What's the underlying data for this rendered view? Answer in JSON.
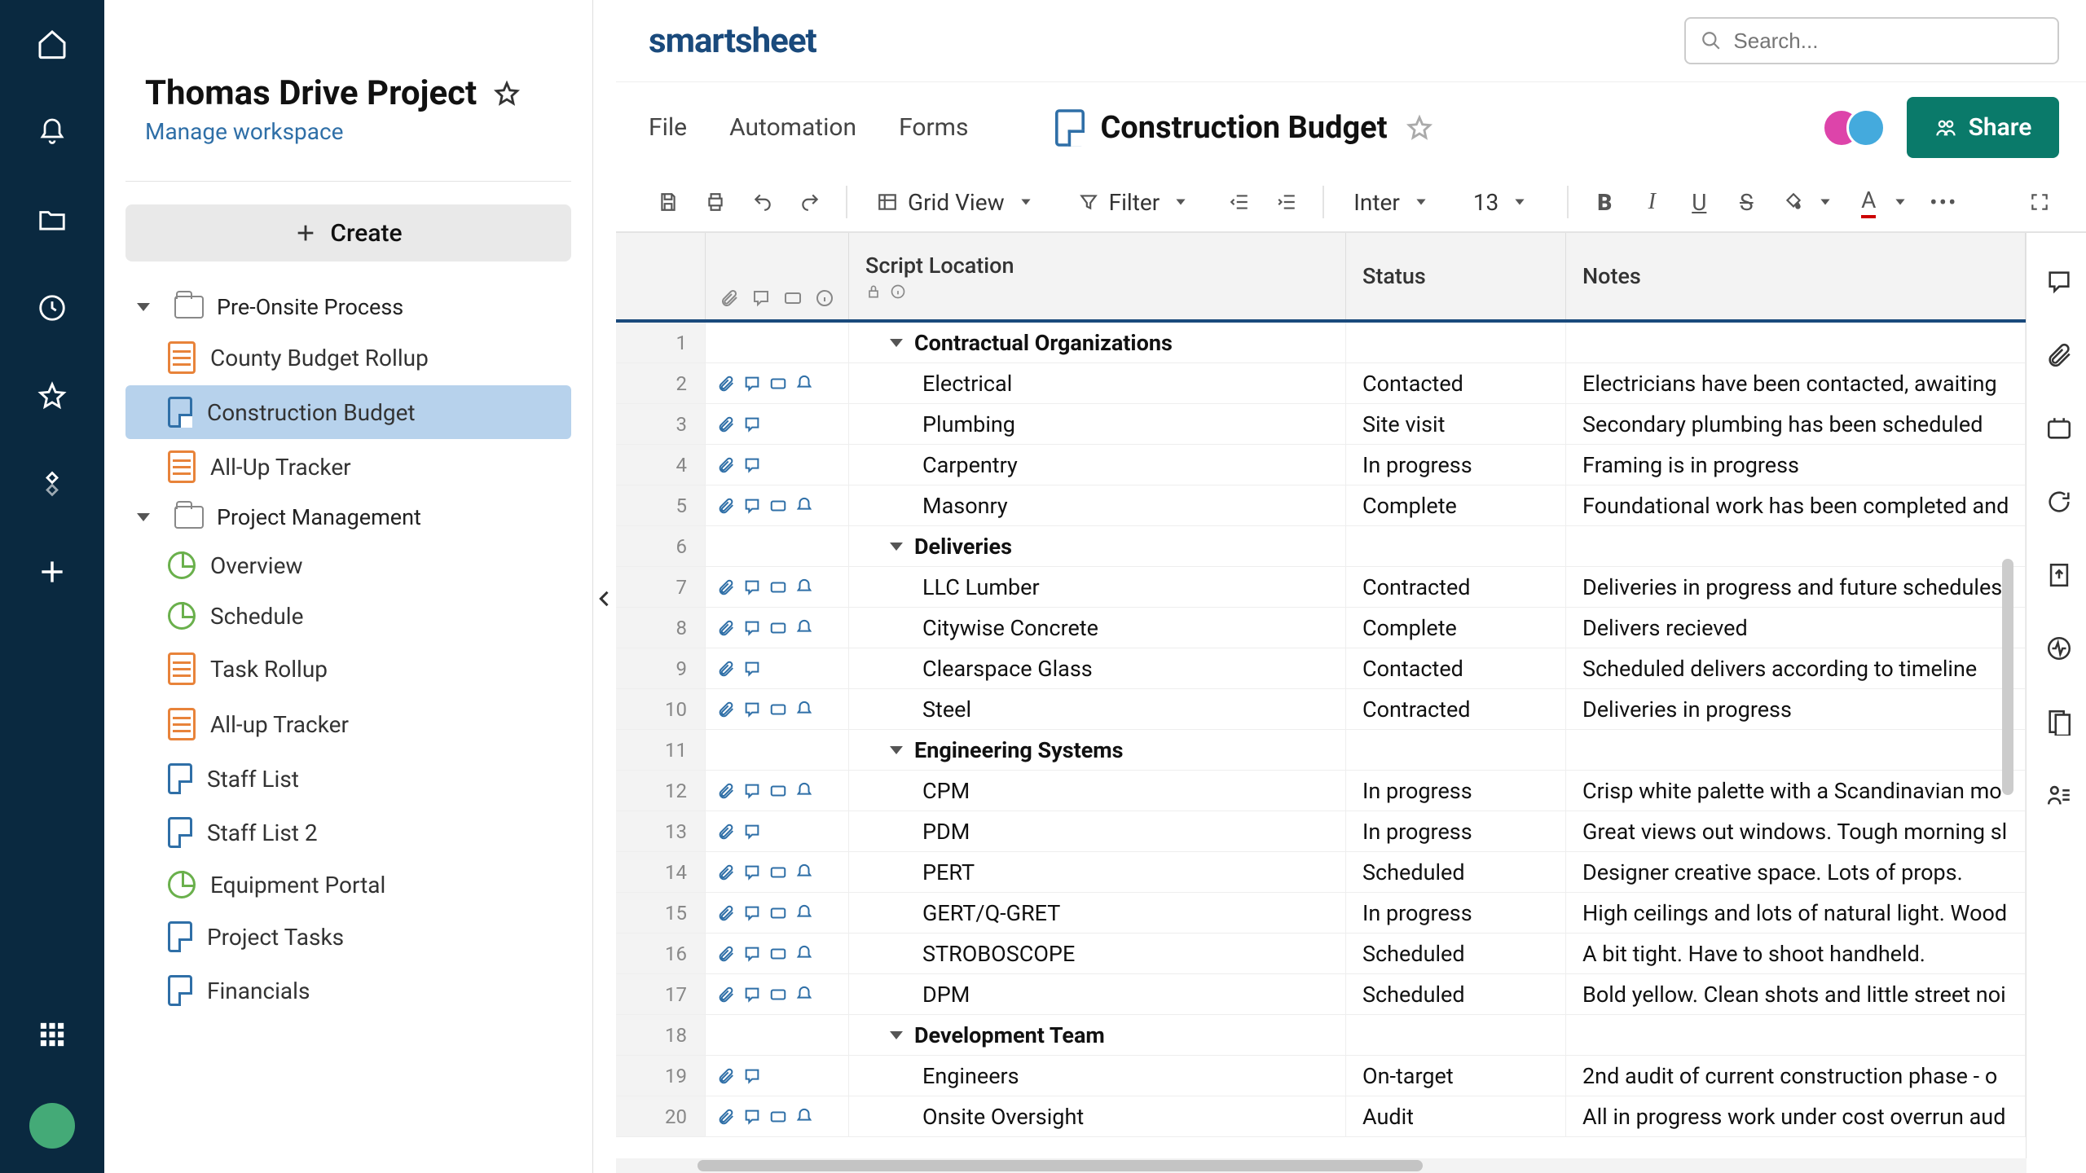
{
  "project": {
    "title": "Thomas Drive Project",
    "manage_link": "Manage workspace"
  },
  "create_button": "Create",
  "nav": {
    "group1": "Pre-Onsite Process",
    "group1_items": [
      {
        "label": "County Budget Rollup",
        "type": "sheet-orange"
      },
      {
        "label": "Construction Budget",
        "type": "sheet-blue",
        "selected": true
      },
      {
        "label": "All-Up Tracker",
        "type": "sheet-orange"
      }
    ],
    "group2": "Project Management",
    "group2_items": [
      {
        "label": "Overview",
        "type": "dash"
      },
      {
        "label": "Schedule",
        "type": "dash"
      },
      {
        "label": "Task Rollup",
        "type": "sheet-orange"
      },
      {
        "label": "All-up Tracker",
        "type": "sheet-orange"
      },
      {
        "label": "Staff List",
        "type": "sheet-blue"
      },
      {
        "label": "Staff List 2",
        "type": "sheet-blue"
      },
      {
        "label": "Equipment Portal",
        "type": "dash"
      },
      {
        "label": "Project Tasks",
        "type": "sheet-blue"
      },
      {
        "label": "Financials",
        "type": "sheet-blue"
      }
    ]
  },
  "brand": "smartsheet",
  "search_placeholder": "Search...",
  "menu": {
    "file": "File",
    "automation": "Automation",
    "forms": "Forms"
  },
  "sheet_title": "Construction Budget",
  "share_label": "Share",
  "toolbar": {
    "view": "Grid View",
    "filter": "Filter",
    "font": "Inter",
    "size": "13"
  },
  "columns": {
    "main": "Script Location",
    "status": "Status",
    "notes": "Notes"
  },
  "rows": [
    {
      "n": "1",
      "group": true,
      "main": "Contractual Organizations",
      "status": "",
      "notes": "",
      "icons": 0
    },
    {
      "n": "2",
      "main": "Electrical",
      "status": "Contacted",
      "notes": "Electricians have been contacted, awaiting",
      "icons": 4
    },
    {
      "n": "3",
      "main": "Plumbing",
      "status": "Site visit",
      "notes": "Secondary plumbing has been scheduled",
      "icons": 2
    },
    {
      "n": "4",
      "main": "Carpentry",
      "status": "In progress",
      "notes": "Framing is in progress",
      "icons": 2
    },
    {
      "n": "5",
      "main": "Masonry",
      "status": "Complete",
      "notes": "Foundational work has been completed and",
      "icons": 4
    },
    {
      "n": "6",
      "group": true,
      "main": "Deliveries",
      "status": "",
      "notes": "",
      "icons": 0
    },
    {
      "n": "7",
      "main": "LLC Lumber",
      "status": "Contracted",
      "notes": "Deliveries in progress and future schedules",
      "icons": 4
    },
    {
      "n": "8",
      "main": "Citywise Concrete",
      "status": "Complete",
      "notes": "Delivers recieved",
      "icons": 4
    },
    {
      "n": "9",
      "main": "Clearspace Glass",
      "status": "Contacted",
      "notes": "Scheduled delivers according to timeline",
      "icons": 2
    },
    {
      "n": "10",
      "main": "Steel",
      "status": "Contracted",
      "notes": "Deliveries in progress",
      "icons": 4
    },
    {
      "n": "11",
      "group": true,
      "main": "Engineering Systems",
      "status": "",
      "notes": "",
      "icons": 0
    },
    {
      "n": "12",
      "main": "CPM",
      "status": "In progress",
      "notes": "Crisp white palette with a Scandinavian mo",
      "icons": 4
    },
    {
      "n": "13",
      "main": "PDM",
      "status": "In progress",
      "notes": "Great views out windows. Tough morning sl",
      "icons": 2
    },
    {
      "n": "14",
      "main": "PERT",
      "status": "Scheduled",
      "notes": "Designer creative space. Lots of props.",
      "icons": 4
    },
    {
      "n": "15",
      "main": "GERT/Q-GRET",
      "status": "In progress",
      "notes": "High ceilings and lots of natural light. Wood",
      "icons": 4
    },
    {
      "n": "16",
      "main": "STROBOSCOPE",
      "status": "Scheduled",
      "notes": "A bit tight. Have to shoot handheld.",
      "icons": 4
    },
    {
      "n": "17",
      "main": "DPM",
      "status": "Scheduled",
      "notes": "Bold yellow. Clean shots and little street noi",
      "icons": 4
    },
    {
      "n": "18",
      "group": true,
      "main": "Development Team",
      "status": "",
      "notes": "",
      "icons": 0
    },
    {
      "n": "19",
      "main": "Engineers",
      "status": "On-target",
      "notes": "2nd audit of current construction phase - o",
      "icons": 2
    },
    {
      "n": "20",
      "main": "Onsite Oversight",
      "status": "Audit",
      "notes": "All in progress work under cost overrun aud",
      "icons": 4
    }
  ]
}
